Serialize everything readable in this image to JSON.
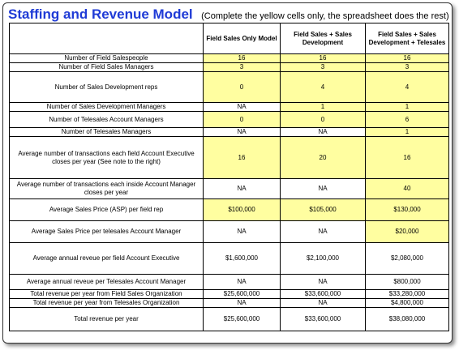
{
  "header": {
    "title": "Staffing and Revenue Model",
    "subtitle": "(Complete the yellow cells only, the spreadsheet does the rest)"
  },
  "columns": [
    "",
    "Field Sales Only Model",
    "Field Sales + Sales Development",
    "Field Sales + Sales Development + Telesales"
  ],
  "rows": [
    {
      "label": "Number of Field Salespeople",
      "values": [
        "16",
        "16",
        "16"
      ],
      "yellow": [
        true,
        true,
        true
      ]
    },
    {
      "label": "Number of Field Sales Managers",
      "values": [
        "3",
        "3",
        "3"
      ],
      "yellow": [
        true,
        true,
        true
      ]
    },
    {
      "label": "Number of Sales Development reps",
      "values": [
        "0",
        "4",
        "4"
      ],
      "yellow": [
        true,
        true,
        true
      ]
    },
    {
      "label": "Number of Sales Development Managers",
      "values": [
        "NA",
        "1",
        "1"
      ],
      "yellow": [
        false,
        true,
        true
      ]
    },
    {
      "label": "Number of Telesales Account Managers",
      "values": [
        "0",
        "0",
        "6"
      ],
      "yellow": [
        true,
        true,
        true
      ]
    },
    {
      "label": "Number of Telesales Managers",
      "values": [
        "NA",
        "NA",
        "1"
      ],
      "yellow": [
        false,
        false,
        true
      ]
    },
    {
      "label": "Average number of transactions each field Account Executive closes per year (See note to the right)",
      "values": [
        "16",
        "20",
        "16"
      ],
      "yellow": [
        true,
        true,
        true
      ]
    },
    {
      "label": "Average number of transactions each inside Account Manager closes per year",
      "values": [
        "NA",
        "NA",
        "40"
      ],
      "yellow": [
        false,
        false,
        true
      ]
    },
    {
      "label": "Average Sales Price (ASP) per field rep",
      "values": [
        "$100,000",
        "$105,000",
        "$130,000"
      ],
      "yellow": [
        true,
        true,
        true
      ]
    },
    {
      "label": "Average Sales Price per telesales Account Manager",
      "values": [
        "NA",
        "NA",
        "$20,000"
      ],
      "yellow": [
        false,
        false,
        true
      ]
    },
    {
      "label": "Average annual reveue per field Account Executive",
      "values": [
        "$1,600,000",
        "$2,100,000",
        "$2,080,000"
      ],
      "yellow": [
        false,
        false,
        false
      ]
    },
    {
      "label": "Average annual reveue per Telesales Account Manager",
      "values": [
        "NA",
        "NA",
        "$800,000"
      ],
      "yellow": [
        false,
        false,
        false
      ]
    },
    {
      "label": "Total revenue per year from Field Sales Organization",
      "values": [
        "$25,600,000",
        "$33,600,000",
        "$33,280,000"
      ],
      "yellow": [
        false,
        false,
        false
      ]
    },
    {
      "label": "Total revenue per year from Telesales Organization",
      "values": [
        "NA",
        "NA",
        "$4,800,000"
      ],
      "yellow": [
        false,
        false,
        false
      ]
    },
    {
      "label": "Total revenue per year",
      "values": [
        "$25,600,000",
        "$33,600,000",
        "$38,080,000"
      ],
      "yellow": [
        false,
        false,
        false
      ]
    }
  ]
}
